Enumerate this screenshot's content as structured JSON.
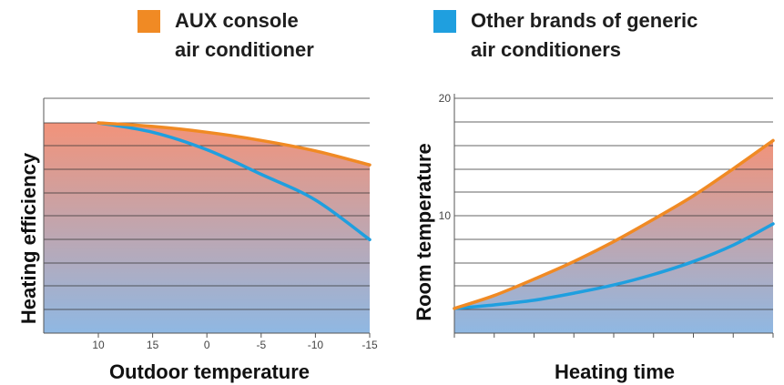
{
  "colors": {
    "aux": "#f08a24",
    "other": "#1f9fdf",
    "fill_top": "#f2937a",
    "fill_bottom": "#8fb8e3",
    "grid": "#333333"
  },
  "legend": [
    {
      "lines": [
        "AUX console",
        "air conditioner"
      ],
      "color_key": "aux"
    },
    {
      "lines": [
        "Other brands of generic",
        "air conditioners"
      ],
      "color_key": "other"
    }
  ],
  "chart_data": [
    {
      "type": "area",
      "title": "",
      "xlabel": "Outdoor temperature",
      "ylabel": "Heating efficiency",
      "x_ticks": [
        "10",
        "15",
        "0",
        "-5",
        "-10",
        "-15"
      ],
      "x_range": [
        0,
        5
      ],
      "y_range": [
        0,
        9
      ],
      "grid": true,
      "series": [
        {
          "name": "AUX console air conditioner",
          "color_key": "aux",
          "x": [
            0,
            1,
            2,
            3,
            4,
            5
          ],
          "values": [
            9.0,
            8.85,
            8.6,
            8.25,
            7.8,
            7.2
          ]
        },
        {
          "name": "Other brands of generic air conditioners",
          "color_key": "other",
          "x": [
            0,
            1,
            2,
            3,
            4,
            5
          ],
          "values": [
            9.0,
            8.6,
            7.85,
            6.8,
            5.7,
            4.0
          ]
        }
      ]
    },
    {
      "type": "area",
      "title": "",
      "xlabel": "Heating time",
      "ylabel": "Room temperature",
      "y_ticks": [
        "20",
        "10"
      ],
      "y_tick_values": [
        20,
        10
      ],
      "x_range": [
        0,
        8
      ],
      "y_range": [
        0,
        20
      ],
      "grid": true,
      "series": [
        {
          "name": "AUX console air conditioner",
          "color_key": "aux",
          "x": [
            0,
            1,
            2,
            3,
            4,
            5,
            6,
            7,
            8
          ],
          "values": [
            2.1,
            3.2,
            4.6,
            6.1,
            7.8,
            9.7,
            11.7,
            14.0,
            16.4
          ]
        },
        {
          "name": "Other brands of generic air conditioners",
          "color_key": "other",
          "x": [
            0,
            1,
            2,
            3,
            4,
            5,
            6,
            7,
            8
          ],
          "values": [
            2.1,
            2.4,
            2.8,
            3.4,
            4.1,
            5.0,
            6.1,
            7.5,
            9.3
          ]
        }
      ]
    }
  ]
}
